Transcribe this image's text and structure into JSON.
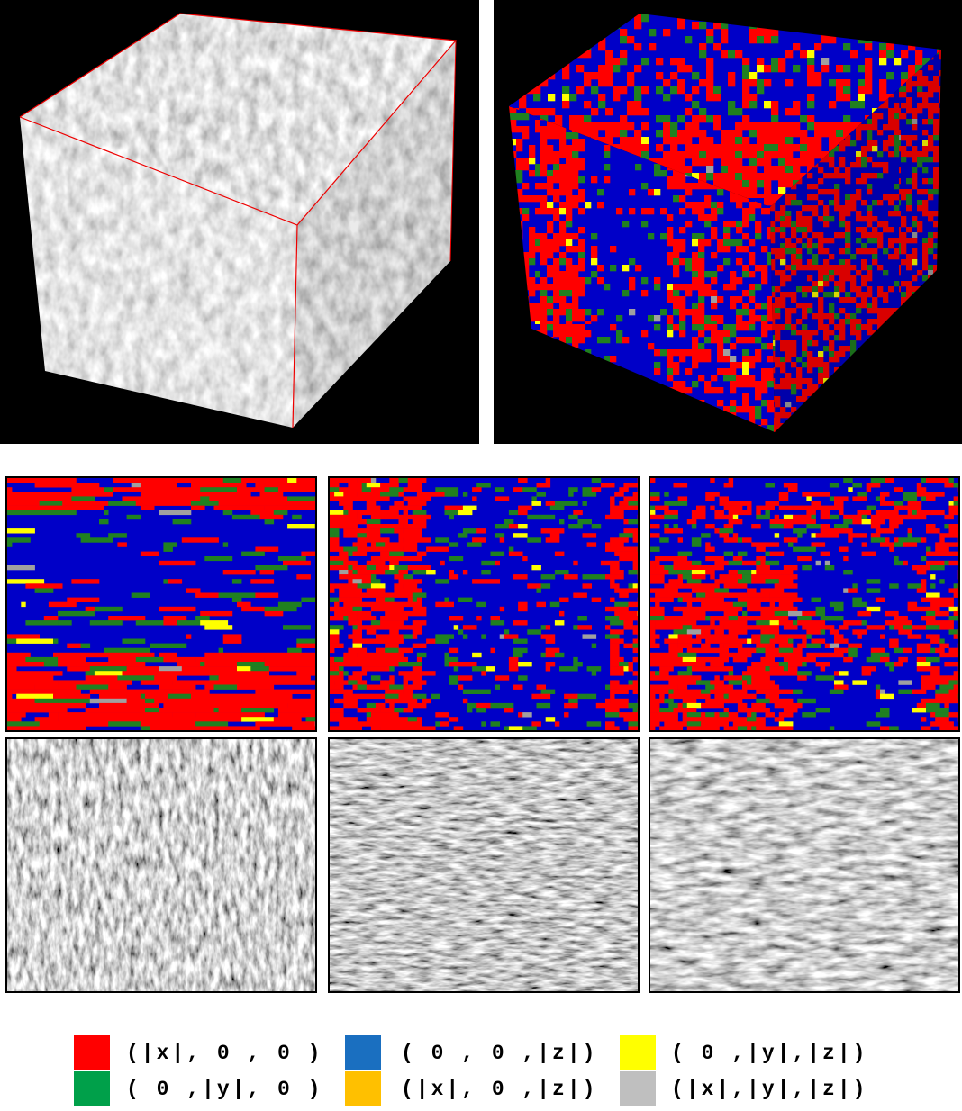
{
  "legend": [
    {
      "label": "(|x|, 0 , 0 )",
      "color": "#ff0000"
    },
    {
      "label": "( 0 ,|y|, 0 )",
      "color": "#00a04a"
    },
    {
      "label": "( 0 , 0 ,|z|)",
      "color": "#1a6fc0"
    },
    {
      "label": "(|x|, 0 ,|z|)",
      "color": "#ffc000"
    },
    {
      "label": "( 0 ,|y|,|z|)",
      "color": "#ffff00"
    },
    {
      "label": "(|x|,|y|,|z|)",
      "color": "#bfbfbf"
    }
  ]
}
